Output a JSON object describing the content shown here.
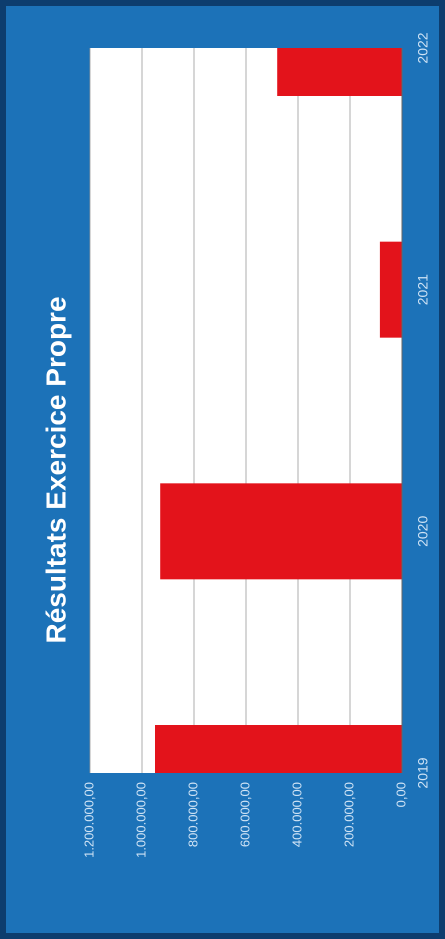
{
  "chart_data": {
    "type": "bar",
    "title": "Résultats  Exercice Propre",
    "categories": [
      "2019",
      "2020",
      "2021",
      "2022"
    ],
    "values": [
      950000,
      930000,
      85000,
      480000
    ],
    "color": "#e3131b",
    "ylim": [
      0,
      1200000
    ],
    "yticks": [
      {
        "value": 0,
        "label": "0,00"
      },
      {
        "value": 200000,
        "label": "200.000,00"
      },
      {
        "value": 400000,
        "label": "400.000,00"
      },
      {
        "value": 600000,
        "label": "600.000,00"
      },
      {
        "value": 800000,
        "label": "800.000,00"
      },
      {
        "value": 1000000,
        "label": "1.000.000,00"
      },
      {
        "value": 1200000,
        "label": "1.200.000,00"
      }
    ],
    "grid": true
  }
}
